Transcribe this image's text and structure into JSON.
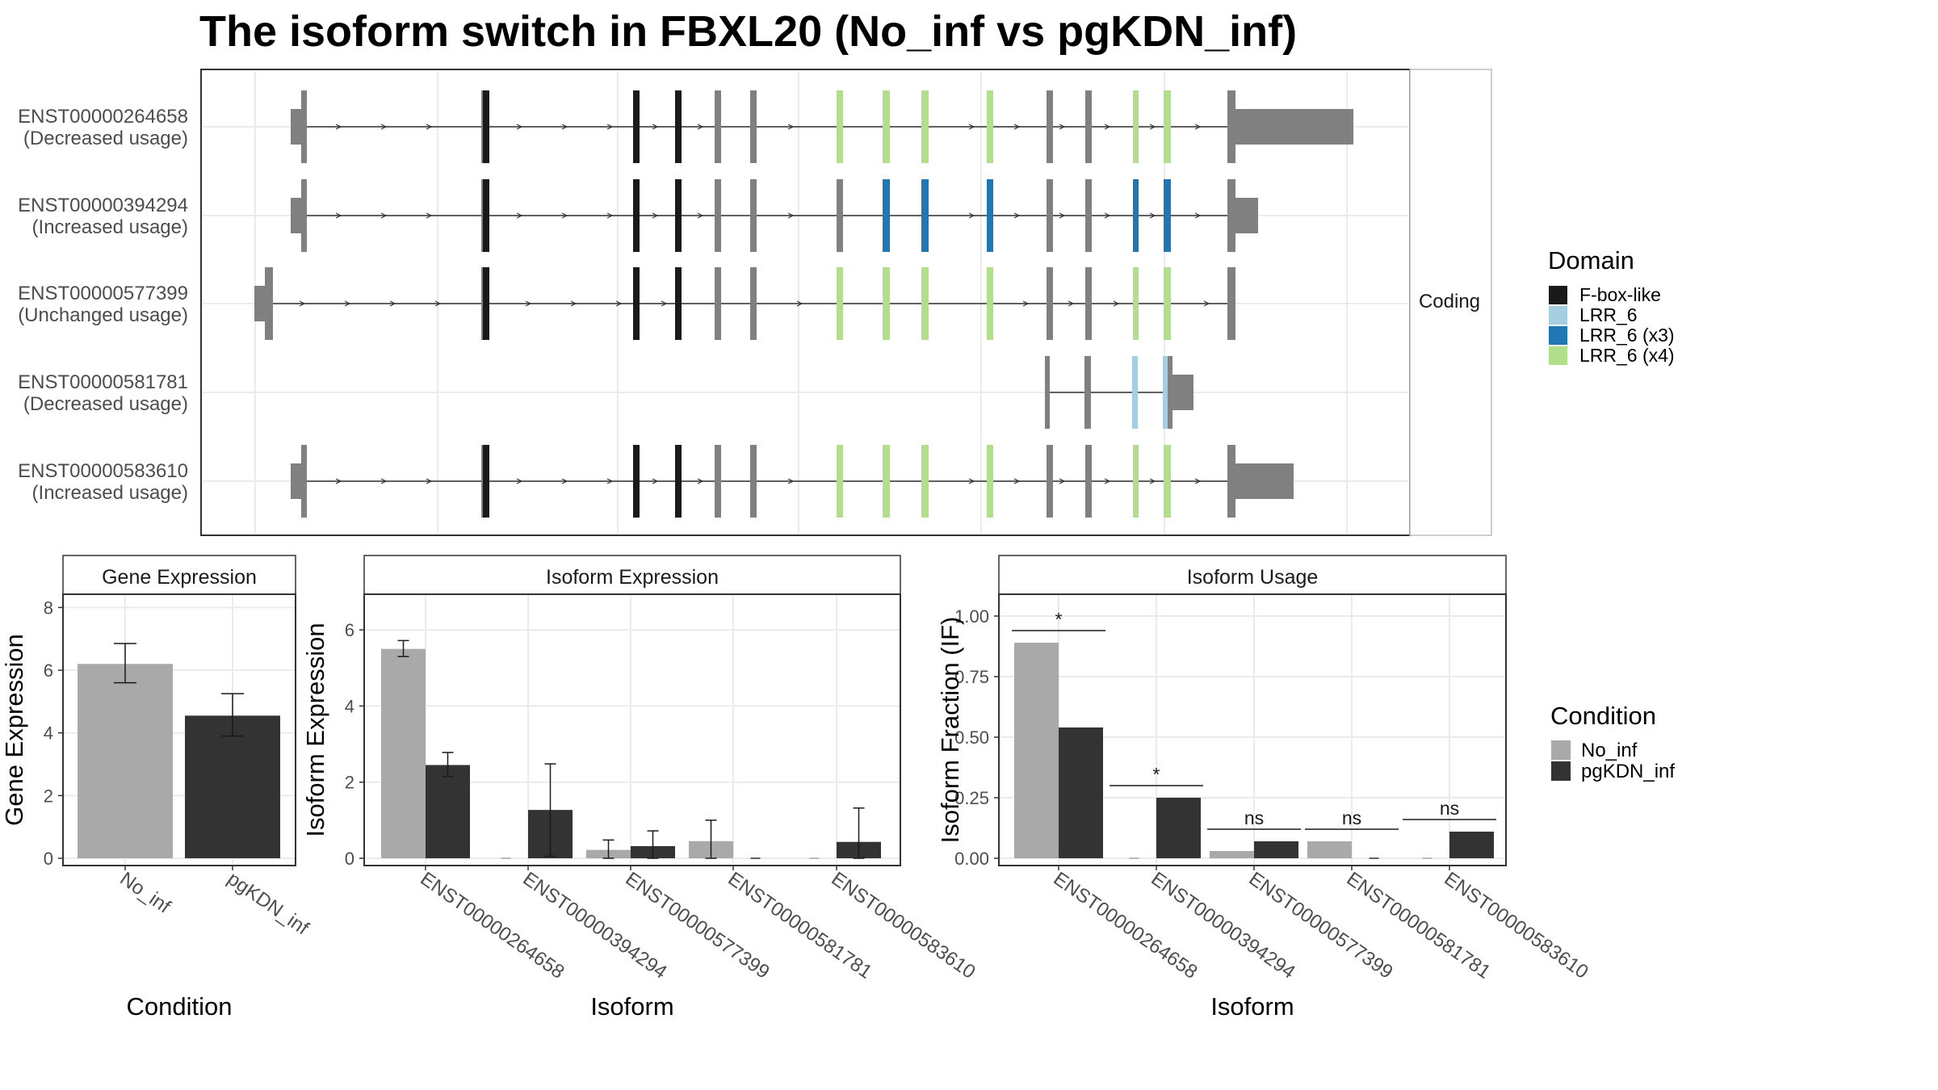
{
  "title": "The isoform switch in FBXL20 (No_inf vs pgKDN_inf)",
  "colors": {
    "no_inf": "#a9a9a9",
    "pgkdn_inf": "#333333",
    "exon": "#808080",
    "fbox": "#1a1a1a",
    "lrr6": "#a6cee3",
    "lrr6_x3": "#1f78b4",
    "lrr6_x4": "#b2df8a",
    "grid": "#ebebeb"
  },
  "structure": {
    "facet_label": "Coding",
    "isoforms": [
      {
        "id": "ENST00000264658",
        "usage": "(Decreased usage)"
      },
      {
        "id": "ENST00000394294",
        "usage": "(Increased usage)"
      },
      {
        "id": "ENST00000577399",
        "usage": "(Unchanged usage)"
      },
      {
        "id": "ENST00000581781",
        "usage": "(Decreased usage)"
      },
      {
        "id": "ENST00000583610",
        "usage": "(Increased usage)"
      }
    ],
    "domain_legend": {
      "title": "Domain",
      "items": [
        {
          "label": "F-box-like",
          "color": "#1a1a1a"
        },
        {
          "label": "LRR_6",
          "color": "#a6cee3"
        },
        {
          "label": "LRR_6 (x3)",
          "color": "#1f78b4"
        },
        {
          "label": "LRR_6 (x4)",
          "color": "#b2df8a"
        }
      ]
    }
  },
  "condition_legend": {
    "title": "Condition",
    "items": [
      {
        "label": "No_inf",
        "color": "#a9a9a9"
      },
      {
        "label": "pgKDN_inf",
        "color": "#333333"
      }
    ]
  },
  "chart_data": [
    {
      "type": "bar",
      "title": "Gene Expression",
      "xlabel": "Condition",
      "ylabel": "Gene Expression",
      "ylim": [
        0,
        8.5
      ],
      "yticks": [
        "0",
        "2",
        "4",
        "6",
        "8"
      ],
      "categories": [
        "No_inf",
        "pgKDN_inf"
      ],
      "values": [
        6.2,
        4.55
      ],
      "error": [
        [
          5.6,
          6.85
        ],
        [
          3.9,
          5.25
        ]
      ],
      "grid": true
    },
    {
      "type": "bar",
      "title": "Isoform Expression",
      "xlabel": "Isoform",
      "ylabel": "Isoform Expression",
      "ylim": [
        0,
        7
      ],
      "yticks": [
        "0",
        "2",
        "4",
        "6"
      ],
      "categories": [
        "ENST00000264658",
        "ENST00000394294",
        "ENST00000577399",
        "ENST00000581781",
        "ENST00000583610"
      ],
      "series": [
        {
          "name": "No_inf",
          "values": [
            5.5,
            0,
            0.22,
            0.45,
            0
          ],
          "error": [
            [
              5.3,
              5.72
            ],
            [
              0,
              0
            ],
            [
              0,
              0.48
            ],
            [
              0,
              1.0
            ],
            [
              0,
              0
            ]
          ]
        },
        {
          "name": "pgKDN_inf",
          "values": [
            2.45,
            1.27,
            0.32,
            0,
            0.43
          ],
          "error": [
            [
              2.15,
              2.78
            ],
            [
              0.05,
              2.48
            ],
            [
              0,
              0.72
            ],
            [
              0,
              0
            ],
            [
              0,
              1.32
            ]
          ]
        }
      ],
      "grid": true
    },
    {
      "type": "bar",
      "title": "Isoform Usage",
      "xlabel": "Isoform",
      "ylabel": "Isoform Fraction (IF)",
      "ylim": [
        0,
        1.1
      ],
      "yticks": [
        "0.00",
        "0.25",
        "0.50",
        "0.75",
        "1.00"
      ],
      "categories": [
        "ENST00000264658",
        "ENST00000394294",
        "ENST00000577399",
        "ENST00000581781",
        "ENST00000583610"
      ],
      "series": [
        {
          "name": "No_inf",
          "values": [
            0.89,
            0,
            0.03,
            0.07,
            0
          ]
        },
        {
          "name": "pgKDN_inf",
          "values": [
            0.54,
            0.25,
            0.07,
            0,
            0.11
          ]
        }
      ],
      "significance": [
        "*",
        "*",
        "ns",
        "ns",
        "ns"
      ],
      "grid": true
    }
  ]
}
